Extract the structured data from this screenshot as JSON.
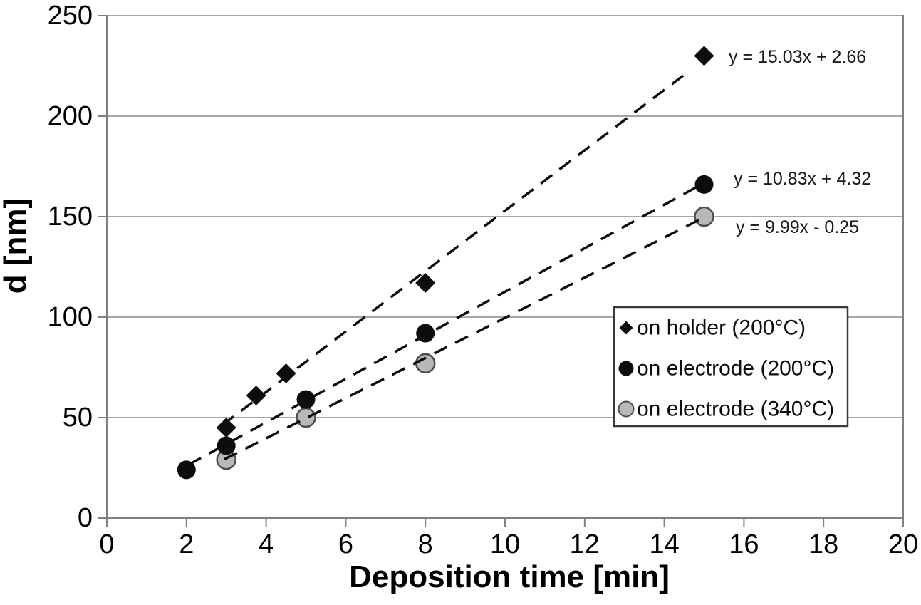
{
  "figure": {
    "background": "#ffffff"
  },
  "colors": {
    "axis_line": "#7f7f7f",
    "gridline": "#a6a6a6",
    "trendline": "#0d0d0d",
    "marker_black": "#0d0d0d",
    "marker_gray_fill": "#b8b8b8",
    "marker_gray_stroke": "#4d4d4d",
    "legend_border": "#3a3a3a",
    "legend_fill": "#ffffff",
    "text": "#000000"
  },
  "chart_data": {
    "type": "scatter",
    "title": "",
    "xlabel": "Deposition time [min]",
    "ylabel": "d [nm]",
    "xlim": [
      0,
      20
    ],
    "ylim": [
      0,
      250
    ],
    "xticks": [
      0,
      2,
      4,
      6,
      8,
      10,
      12,
      14,
      16,
      18,
      20
    ],
    "yticks": [
      0,
      50,
      100,
      150,
      200,
      250
    ],
    "grid": "horizontal-only",
    "legend_position": "middle-right",
    "legend_items": [
      "on holder (200°C)",
      "on electrode (200°C)",
      "on electrode (340°C)"
    ],
    "series": [
      {
        "name": "on holder (200°C)",
        "marker": "diamond",
        "fill": "#0d0d0d",
        "stroke": "#0d0d0d",
        "points": [
          [
            3,
            45
          ],
          [
            3.75,
            61
          ],
          [
            4.5,
            72
          ],
          [
            8,
            117
          ],
          [
            15,
            230
          ]
        ],
        "trendline": {
          "style": "dashed",
          "slope": 15.03,
          "intercept": 2.66,
          "x_start": 2.9,
          "x_end": 14.6,
          "equation": "y = 15.03x + 2.66"
        }
      },
      {
        "name": "on electrode (200°C)",
        "marker": "circle",
        "fill": "#0d0d0d",
        "stroke": "#0d0d0d",
        "points": [
          [
            2,
            24
          ],
          [
            3,
            36
          ],
          [
            5,
            59
          ],
          [
            8,
            92
          ],
          [
            15,
            166
          ]
        ],
        "trendline": {
          "style": "dashed",
          "slope": 10.83,
          "intercept": 4.32,
          "x_start": 2.05,
          "x_end": 14.85,
          "equation": "y = 10.83x + 4.32"
        }
      },
      {
        "name": "on electrode (340°C)",
        "marker": "circle",
        "fill": "#b8b8b8",
        "stroke": "#4d4d4d",
        "points": [
          [
            3,
            29
          ],
          [
            5,
            50
          ],
          [
            8,
            77
          ],
          [
            15,
            150
          ]
        ],
        "trendline": {
          "style": "dashed",
          "slope": 9.99,
          "intercept": -0.25,
          "x_start": 2.95,
          "x_end": 15.05,
          "equation": "y = 9.99x - 0.25"
        }
      }
    ]
  }
}
